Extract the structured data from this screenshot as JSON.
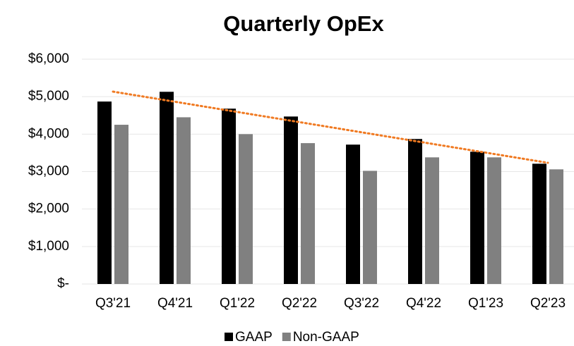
{
  "chart_data": {
    "type": "bar",
    "title": "Quarterly OpEx",
    "categories": [
      "Q3'21",
      "Q4'21",
      "Q1'22",
      "Q2'22",
      "Q3'22",
      "Q4'22",
      "Q1'23",
      "Q2'23"
    ],
    "series": [
      {
        "name": "GAAP",
        "color": "#000000",
        "values": [
          4870,
          5130,
          4680,
          4470,
          3720,
          3870,
          3530,
          3210
        ],
        "trendline": "#f07a22"
      },
      {
        "name": "Non-GAAP",
        "color": "#808080",
        "values": [
          4250,
          4450,
          4000,
          3760,
          3020,
          3380,
          3380,
          3060
        ]
      }
    ],
    "ylim": [
      0,
      6000
    ],
    "yticks": [
      {
        "value": 0,
        "label": "$-"
      },
      {
        "value": 1000,
        "label": "$1,000"
      },
      {
        "value": 2000,
        "label": "$2,000"
      },
      {
        "value": 3000,
        "label": "$3,000"
      },
      {
        "value": 4000,
        "label": "$4,000"
      },
      {
        "value": 5000,
        "label": "$5,000"
      },
      {
        "value": 6000,
        "label": "$6,000"
      }
    ],
    "grid": true,
    "legend": "bottom"
  }
}
